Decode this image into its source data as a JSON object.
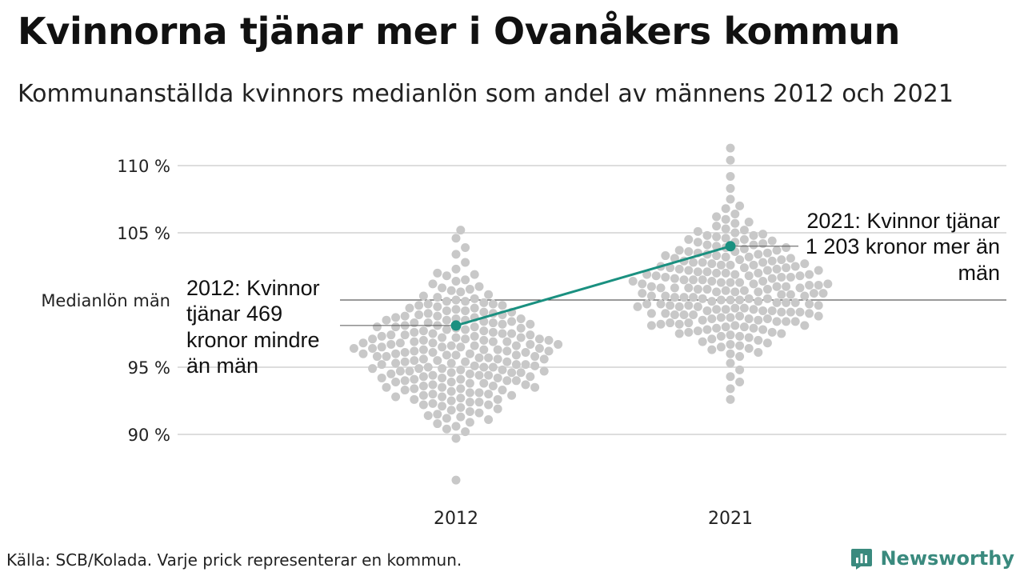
{
  "title": "Kvinnorna tjänar mer i Ovanåkers kommun",
  "subtitle": "Kommunanställda kvinnors medianlön som andel av männens 2012 och 2021",
  "source": "Källa: SCB/Kolada. Varje prick representerar en kommun.",
  "logo": {
    "text": "Newsworthy",
    "color": "#3a8a7e"
  },
  "annotations": {
    "a2012": "2012: Kvinnor tjänar 469 kronor mindre än män",
    "a2021": "2021: Kvinnor tjänar 1 203 kronor mer än män"
  },
  "chart_data": {
    "type": "scatter",
    "subtype": "beeswarm",
    "categories": [
      "2012",
      "2021"
    ],
    "y_tick_labels": [
      "90 %",
      "95 %",
      "Medianlön män",
      "105 %",
      "110 %"
    ],
    "y_tick_values": [
      90,
      95,
      100,
      105,
      110
    ],
    "ylim": [
      85,
      112
    ],
    "grid": true,
    "reference_line": {
      "value": 100,
      "label": "Medianlön män"
    },
    "highlight": {
      "name": "Ovanåkers kommun",
      "color": "#1a9080",
      "values": [
        {
          "x": "2012",
          "y": 98.1
        },
        {
          "x": "2021",
          "y": 104.0
        }
      ]
    },
    "swarm_color": "#c8c8c8",
    "swarm_2012": [
      98.5,
      95.2,
      96.8,
      97.5,
      99.1,
      94.2,
      96.0,
      100.4,
      93.5,
      97.8,
      95.9,
      98.9,
      92.8,
      96.5,
      99.6,
      94.9,
      97.2,
      101.2,
      95.5,
      93.8,
      98.3,
      96.3,
      94.5,
      97.0,
      99.9,
      91.9,
      96.1,
      95.0,
      102.3,
      98.0,
      94.7,
      97.4,
      93.1,
      96.7,
      100.9,
      95.6,
      92.4,
      99.4,
      97.7,
      94.3,
      96.2,
      98.6,
      91.2,
      95.3,
      97.1,
      103.4,
      94.0,
      96.9,
      99.2,
      93.4,
      95.7,
      98.1,
      90.6,
      96.4,
      94.8,
      97.6,
      100.2,
      92.9,
      95.1,
      98.4,
      93.9,
      96.6,
      101.8,
      94.4,
      97.3,
      89.7,
      95.8,
      99.7,
      92.2,
      96.0,
      98.8,
      94.1,
      104.6,
      93.3,
      97.9,
      95.4,
      100.7,
      91.6,
      96.8,
      94.6,
      98.2,
      93.0,
      99.0,
      95.2,
      97.4,
      92.6,
      101.5,
      94.9,
      96.3,
      98.7,
      90.9,
      95.9,
      93.6,
      97.0,
      99.5,
      94.2,
      102.8,
      92.0,
      96.5,
      95.0,
      98.3,
      93.7,
      97.2,
      91.4,
      100.0,
      94.7,
      96.1,
      99.3,
      92.7,
      95.6,
      98.0,
      105.2,
      93.2,
      97.7,
      94.4,
      96.9,
      100.6,
      91.8,
      95.4,
      98.5,
      93.5,
      96.7,
      99.8,
      94.0,
      97.5,
      92.3,
      95.8,
      101.0,
      93.9,
      96.2,
      98.9,
      90.2,
      94.6,
      97.1,
      95.1,
      99.4,
      92.5,
      96.4,
      93.4,
      98.2,
      94.8,
      100.3,
      91.1,
      97.8,
      95.3,
      96.6,
      102.0,
      93.1,
      98.6,
      94.3,
      97.3,
      92.1,
      99.1,
      95.7,
      96.0,
      94.1,
      98.4,
      93.8,
      100.8,
      96.8,
      91.5,
      95.5,
      97.6,
      94.5,
      99.6,
      92.8,
      96.3,
      98.1,
      93.3,
      103.9,
      95.2,
      97.0,
      94.9,
      90.4,
      96.5,
      98.7,
      92.4,
      99.9,
      95.9,
      94.2,
      97.4,
      93.6,
      101.4,
      96.1,
      98.3,
      91.7,
      94.7,
      96.9,
      99.2,
      92.9,
      95.0,
      97.9,
      86.6,
      93.0,
      96.7,
      98.8,
      94.4,
      100.1,
      95.6,
      92.2,
      97.2,
      93.7,
      96.2,
      99.0,
      91.3,
      95.4,
      98.0,
      94.0,
      97.5,
      92.6,
      101.9,
      96.4,
      93.5,
      98.5,
      95.8,
      94.6,
      99.7,
      90.8,
      96.6,
      97.1
    ],
    "swarm_2021": [
      100.2,
      101.5,
      99.1,
      102.8,
      98.4,
      103.9,
      100.8,
      97.6,
      101.9,
      104.5,
      99.6,
      102.2,
      98.9,
      105.3,
      100.5,
      96.9,
      103.1,
      101.2,
      99.3,
      104.1,
      97.9,
      102.6,
      100.0,
      106.0,
      98.6,
      101.7,
      103.5,
      99.8,
      95.8,
      102.0,
      100.9,
      104.8,
      98.1,
      101.4,
      103.3,
      99.5,
      106.8,
      97.3,
      100.3,
      102.9,
      98.8,
      101.0,
      104.3,
      99.0,
      102.4,
      96.5,
      100.6,
      103.7,
      98.3,
      101.8,
      105.7,
      99.7,
      102.1,
      97.8,
      100.1,
      104.0,
      98.5,
      101.3,
      103.0,
      99.2,
      107.5,
      100.7,
      96.1,
      102.7,
      98.0,
      101.6,
      104.6,
      99.4,
      100.4,
      103.2,
      97.1,
      102.3,
      99.9,
      101.1,
      105.0,
      98.7,
      100.9,
      94.3,
      103.6,
      99.3,
      102.5,
      97.5,
      101.4,
      104.2,
      98.2,
      100.2,
      108.3,
      99.6,
      102.0,
      96.7,
      101.9,
      103.8,
      98.9,
      100.5,
      105.5,
      97.7,
      102.8,
      99.1,
      101.2,
      104.7,
      100.0,
      98.4,
      103.4,
      95.3,
      101.7,
      99.8,
      102.6,
      97.2,
      100.8,
      106.4,
      98.6,
      101.5,
      103.1,
      99.5,
      93.4,
      102.2,
      100.3,
      104.4,
      97.9,
      101.0,
      99.0,
      103.9,
      98.1,
      109.2,
      100.6,
      102.4,
      96.3,
      101.3,
      99.7,
      105.2,
      98.8,
      102.9,
      100.1,
      97.4,
      103.5,
      101.8,
      99.2,
      104.9,
      98.3,
      100.7,
      102.1,
      96.0,
      101.6,
      107.0,
      99.4,
      103.3,
      98.5,
      100.4,
      102.7,
      94.8,
      101.1,
      99.9,
      104.1,
      97.6,
      102.5,
      100.9,
      98.0,
      103.7,
      101.4,
      99.3,
      105.8,
      96.8,
      100.2,
      102.3,
      98.7,
      101.9,
      110.4,
      99.6,
      103.0,
      97.0,
      100.8,
      102.0,
      98.2,
      104.5,
      101.2,
      99.1,
      92.6,
      100.5,
      103.6,
      97.8,
      101.7,
      99.8,
      102.8,
      98.9,
      106.2,
      100.0,
      101.0,
      104.3,
      96.6,
      99.5,
      102.6,
      98.4,
      100.3,
      103.2,
      101.5,
      97.3,
      99.0,
      111.3,
      100.6,
      102.2,
      98.6,
      101.3,
      93.9,
      104.8,
      99.7,
      100.9,
      97.5,
      103.4,
      101.8,
      99.2,
      98.1,
      102.4,
      100.1,
      105.1,
      96.4
    ]
  }
}
